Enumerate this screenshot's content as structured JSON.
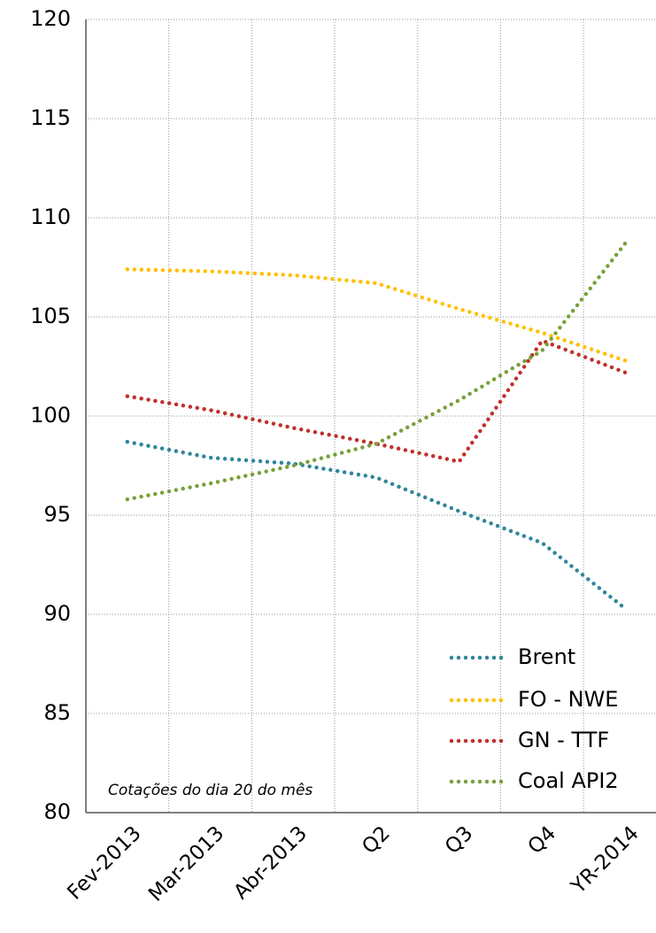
{
  "chart_data": {
    "type": "line",
    "categories": [
      "Fev-2013",
      "Mar-2013",
      "Abr-2013",
      "Q2",
      "Q3",
      "Q4",
      "YR-2014"
    ],
    "series": [
      {
        "name": "Brent",
        "color": "#31859c",
        "values": [
          98.7,
          97.9,
          97.6,
          96.9,
          95.2,
          93.6,
          90.3
        ]
      },
      {
        "name": "FO - NWE",
        "color": "#ffc000",
        "values": [
          107.4,
          107.3,
          107.1,
          106.7,
          105.4,
          104.2,
          102.8
        ]
      },
      {
        "name": "GN - TTF",
        "color": "#c0302c",
        "values": [
          101.0,
          100.3,
          99.4,
          98.6,
          97.7,
          103.8,
          102.2
        ]
      },
      {
        "name": "Coal API2",
        "color": "#77a03a",
        "values": [
          95.8,
          96.6,
          97.5,
          98.6,
          100.8,
          103.3,
          108.7
        ]
      }
    ],
    "ylim": [
      80,
      120
    ],
    "yticks": [
      80,
      85,
      90,
      95,
      100,
      105,
      110,
      115,
      120
    ],
    "grid": true,
    "legend": "lower right",
    "annotation": "Cotações do dia 20 do mês"
  }
}
